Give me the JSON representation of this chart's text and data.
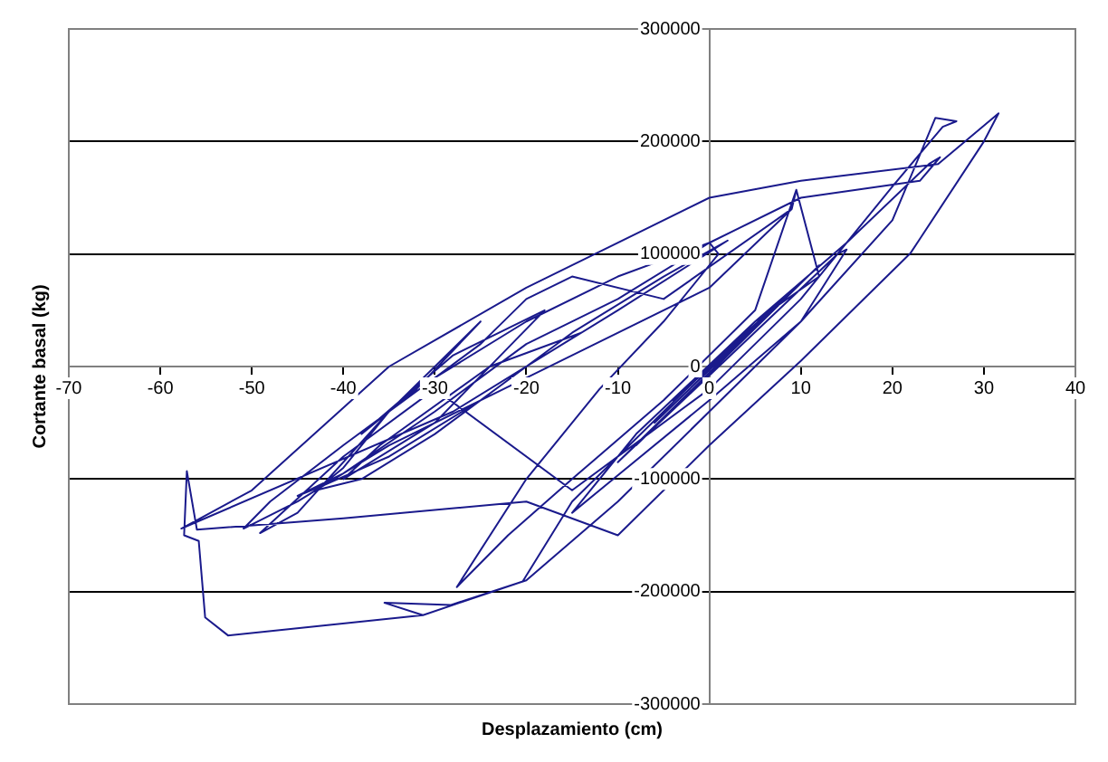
{
  "chart_data": {
    "type": "line",
    "xlabel": "Desplazamiento (cm)",
    "ylabel": "Cortante basal (kg)",
    "xlim": [
      -70,
      40
    ],
    "xticks": [
      -70,
      -60,
      -50,
      -40,
      -30,
      -20,
      -10,
      0,
      10,
      20,
      30,
      40
    ],
    "ylim": [
      -300000,
      300000
    ],
    "yticks": [
      -300000,
      -200000,
      -100000,
      0,
      100000,
      200000,
      300000
    ],
    "grid": "y",
    "legend": false,
    "marker": "none",
    "line_style": "solid",
    "series": [
      {
        "color": "#1a1a8c",
        "x": [
          0,
          3,
          -2,
          5,
          -4,
          8,
          -6,
          10,
          -8,
          12,
          -10,
          14,
          15,
          10,
          0,
          -12,
          -15,
          -8,
          5,
          12,
          9.5,
          9,
          -5,
          -15,
          -20,
          -25,
          -30,
          -35,
          -40,
          -43,
          -38,
          -30,
          -20,
          -10,
          2,
          -5,
          -15,
          -25,
          -35,
          -42,
          -45,
          -40,
          -30,
          -20,
          -10,
          0,
          1,
          -5,
          -12,
          -20,
          -27.6,
          -22,
          -15,
          -5,
          5,
          9.5,
          9,
          0,
          -15,
          -25,
          -35,
          -45,
          -50.9,
          -48,
          -40,
          -30,
          -20,
          -10,
          0,
          10,
          23,
          25.2,
          24,
          15,
          5,
          -5,
          -15,
          -20.4,
          -31.3,
          -35.5,
          -28.3,
          -20,
          -10,
          0,
          10,
          20,
          24.7,
          27,
          25.5,
          20,
          10,
          0,
          -15,
          -30,
          -40,
          -49.1,
          -45,
          -35,
          -25,
          -32,
          -38,
          -28,
          -18,
          -30,
          -40,
          -36,
          -24,
          -14,
          -28,
          -57.7,
          -50,
          -35,
          -20,
          0,
          10,
          25,
          31.6,
          30,
          22,
          10,
          0,
          -10,
          -20,
          -40,
          -56,
          -57.1,
          -57.4,
          -55.8,
          -55.1,
          -52.6,
          -31.3,
          -20.4
        ],
        "values": [
          0,
          20000,
          -15000,
          35000,
          -30000,
          60000,
          -50000,
          75000,
          -70000,
          90000,
          -85000,
          100000,
          104000,
          40000,
          -30000,
          -110000,
          -130000,
          -60000,
          40000,
          80000,
          157000,
          140000,
          60000,
          80000,
          60000,
          20000,
          -10000,
          -40000,
          -90000,
          -110000,
          -100000,
          -60000,
          0,
          50000,
          112000,
          80000,
          30000,
          -30000,
          -80000,
          -105000,
          -115000,
          -95000,
          -40000,
          20000,
          60000,
          110000,
          100000,
          40000,
          -20000,
          -100000,
          -196000,
          -150000,
          -100000,
          -30000,
          50000,
          157000,
          140000,
          70000,
          10000,
          -30000,
          -70000,
          -120000,
          -144000,
          -120000,
          -70000,
          -10000,
          40000,
          80000,
          110000,
          150000,
          165000,
          186000,
          180000,
          110000,
          40000,
          -40000,
          -120000,
          -191000,
          -221000,
          -210000,
          -212000,
          -190000,
          -120000,
          -40000,
          40000,
          130000,
          221000,
          218000,
          213000,
          160000,
          60000,
          -20000,
          -110000,
          -20000,
          -80000,
          -148000,
          -130000,
          -40000,
          40000,
          -20000,
          -60000,
          10000,
          50000,
          -50000,
          -100000,
          -70000,
          0,
          30000,
          -40000,
          -144000,
          -110000,
          0,
          70000,
          150000,
          165000,
          180000,
          225000,
          200000,
          101000,
          5000,
          -70000,
          -150000,
          -120000,
          -135000,
          -145000,
          -93000,
          -150000,
          -155000,
          -223000,
          -239000,
          -221000,
          -191000
        ]
      }
    ]
  }
}
